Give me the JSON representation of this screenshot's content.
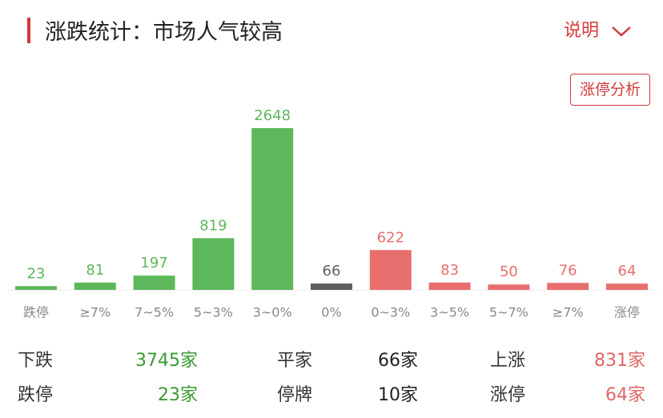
{
  "header": {
    "title": "涨跌统计：市场人气较高",
    "link": "说明"
  },
  "button": "涨停分析",
  "chart_data": {
    "type": "bar",
    "categories": [
      "跌停",
      "≥7%",
      "7~5%",
      "5~3%",
      "3~0%",
      "0%",
      "0~3%",
      "3~5%",
      "5~7%",
      "≥7%",
      "涨停"
    ],
    "values": [
      23,
      81,
      197,
      819,
      2648,
      66,
      622,
      83,
      50,
      76,
      64
    ],
    "colors": [
      "#5cb85a",
      "#5cb85a",
      "#5cb85a",
      "#5cb85a",
      "#5cb85a",
      "#5f5f5f",
      "#e86e6e",
      "#e86e6e",
      "#e86e6e",
      "#e86e6e",
      "#e86e6e"
    ]
  },
  "stats": {
    "rows": [
      [
        {
          "label": "下跌",
          "value": "3745家"
        },
        {
          "label": "平家",
          "value": "66家"
        },
        {
          "label": "上涨",
          "value": "831家"
        }
      ],
      [
        {
          "label": "跌停",
          "value": "23家"
        },
        {
          "label": "停牌",
          "value": "10家"
        },
        {
          "label": "涨停",
          "value": "64家"
        }
      ]
    ]
  }
}
